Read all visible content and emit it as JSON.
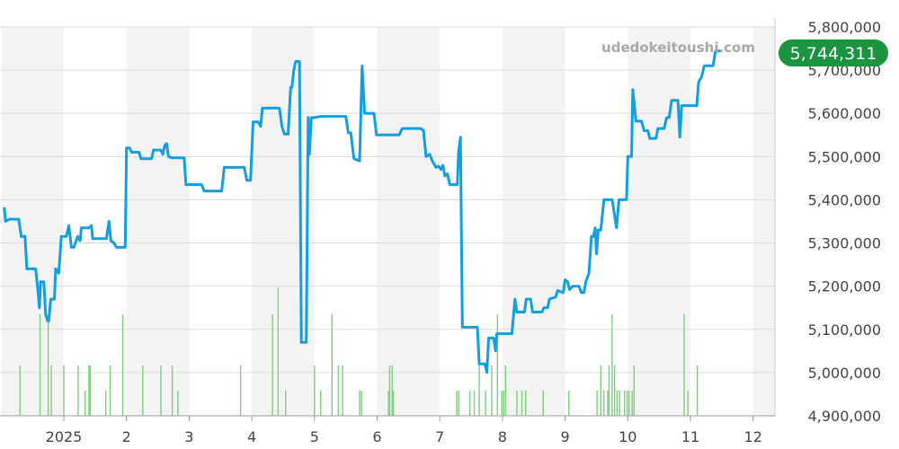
{
  "watermark": "udedokeitoushi.com",
  "current_price_label": "5,744,311",
  "colors": {
    "line": "#129fdf",
    "volume": "#7ccf7c",
    "badge": "#1b9440",
    "band": "#f3f3f3",
    "grid": "#dddddd"
  },
  "chart_data": {
    "type": "line",
    "title": "",
    "xlabel": "",
    "ylabel": "",
    "ylim": [
      4900000,
      5800000
    ],
    "grid": true,
    "y_ticks": [
      {
        "value": 4900000,
        "label": "4,900,000"
      },
      {
        "value": 5000000,
        "label": "5,000,000"
      },
      {
        "value": 5100000,
        "label": "5,100,000"
      },
      {
        "value": 5200000,
        "label": "5,200,000"
      },
      {
        "value": 5300000,
        "label": "5,300,000"
      },
      {
        "value": 5400000,
        "label": "5,400,000"
      },
      {
        "value": 5500000,
        "label": "5,500,000"
      },
      {
        "value": 5600000,
        "label": "5,600,000"
      },
      {
        "value": 5700000,
        "label": "5,700,000"
      },
      {
        "value": 5800000,
        "label": "5,800,000"
      }
    ],
    "x_ticks": [
      {
        "month": 12,
        "label": "2025"
      },
      {
        "month": 13,
        "label": "2"
      },
      {
        "month": 14,
        "label": "3"
      },
      {
        "month": 15,
        "label": "4"
      },
      {
        "month": 16,
        "label": "5"
      },
      {
        "month": 17,
        "label": "6"
      },
      {
        "month": 18,
        "label": "7"
      },
      {
        "month": 19,
        "label": "8"
      },
      {
        "month": 20,
        "label": "9"
      },
      {
        "month": 21,
        "label": "10"
      },
      {
        "month": 22,
        "label": "11"
      },
      {
        "month": 23,
        "label": "12"
      }
    ],
    "series": [
      {
        "values": [
          [
            11.05,
            5380000
          ],
          [
            11.07,
            5350000
          ],
          [
            11.13,
            5355000
          ],
          [
            11.28,
            5355000
          ],
          [
            11.32,
            5315000
          ],
          [
            11.38,
            5315000
          ],
          [
            11.41,
            5240000
          ],
          [
            11.55,
            5240000
          ],
          [
            11.58,
            5200000
          ],
          [
            11.61,
            5150000
          ],
          [
            11.63,
            5210000
          ],
          [
            11.68,
            5210000
          ],
          [
            11.71,
            5135000
          ],
          [
            11.74,
            5120000
          ],
          [
            11.76,
            5120000
          ],
          [
            11.79,
            5170000
          ],
          [
            11.85,
            5170000
          ],
          [
            11.87,
            5240000
          ],
          [
            11.92,
            5230000
          ],
          [
            11.96,
            5315000
          ],
          [
            12.04,
            5315000
          ],
          [
            12.08,
            5340000
          ],
          [
            12.12,
            5290000
          ],
          [
            12.16,
            5290000
          ],
          [
            12.22,
            5315000
          ],
          [
            12.26,
            5305000
          ],
          [
            12.28,
            5335000
          ],
          [
            12.4,
            5335000
          ],
          [
            12.44,
            5340000
          ],
          [
            12.46,
            5310000
          ],
          [
            12.68,
            5310000
          ],
          [
            12.72,
            5350000
          ],
          [
            12.75,
            5305000
          ],
          [
            12.8,
            5300000
          ],
          [
            12.84,
            5290000
          ],
          [
            12.98,
            5290000
          ],
          [
            13.0,
            5520000
          ],
          [
            13.05,
            5520000
          ],
          [
            13.08,
            5510000
          ],
          [
            13.2,
            5510000
          ],
          [
            13.23,
            5495000
          ],
          [
            13.4,
            5495000
          ],
          [
            13.43,
            5515000
          ],
          [
            13.55,
            5515000
          ],
          [
            13.58,
            5505000
          ],
          [
            13.61,
            5525000
          ],
          [
            13.64,
            5530000
          ],
          [
            13.67,
            5500000
          ],
          [
            13.72,
            5497000
          ],
          [
            13.92,
            5497000
          ],
          [
            13.95,
            5435000
          ],
          [
            14.2,
            5435000
          ],
          [
            14.24,
            5420000
          ],
          [
            14.52,
            5420000
          ],
          [
            14.56,
            5475000
          ],
          [
            14.88,
            5475000
          ],
          [
            14.92,
            5445000
          ],
          [
            14.98,
            5445000
          ],
          [
            15.02,
            5580000
          ],
          [
            15.1,
            5580000
          ],
          [
            15.14,
            5570000
          ],
          [
            15.17,
            5612000
          ],
          [
            15.44,
            5612000
          ],
          [
            15.48,
            5570000
          ],
          [
            15.52,
            5552000
          ],
          [
            15.58,
            5552000
          ],
          [
            15.62,
            5660000
          ],
          [
            15.64,
            5660000
          ],
          [
            15.67,
            5700000
          ],
          [
            15.7,
            5720000
          ],
          [
            15.76,
            5720000
          ],
          [
            15.79,
            5070000
          ],
          [
            15.87,
            5070000
          ],
          [
            15.9,
            5590000
          ],
          [
            15.92,
            5505000
          ],
          [
            15.95,
            5590000
          ],
          [
            16.0,
            5590000
          ],
          [
            16.1,
            5593000
          ],
          [
            16.5,
            5593000
          ],
          [
            16.54,
            5555000
          ],
          [
            16.58,
            5555000
          ],
          [
            16.63,
            5495000
          ],
          [
            16.72,
            5490000
          ],
          [
            16.76,
            5710000
          ],
          [
            16.8,
            5600000
          ],
          [
            16.95,
            5600000
          ],
          [
            16.99,
            5550000
          ],
          [
            17.35,
            5550000
          ],
          [
            17.4,
            5565000
          ],
          [
            17.7,
            5565000
          ],
          [
            17.74,
            5560000
          ],
          [
            17.78,
            5500000
          ],
          [
            17.84,
            5505000
          ],
          [
            17.88,
            5490000
          ],
          [
            17.94,
            5475000
          ],
          [
            17.98,
            5478000
          ],
          [
            18.02,
            5470000
          ],
          [
            18.05,
            5480000
          ],
          [
            18.08,
            5455000
          ],
          [
            18.12,
            5460000
          ],
          [
            18.16,
            5435000
          ],
          [
            18.28,
            5435000
          ],
          [
            18.3,
            5510000
          ],
          [
            18.33,
            5545000
          ],
          [
            18.36,
            5105000
          ],
          [
            18.6,
            5105000
          ],
          [
            18.63,
            5020000
          ],
          [
            18.72,
            5020000
          ],
          [
            18.75,
            5000000
          ],
          [
            18.78,
            5080000
          ],
          [
            18.86,
            5080000
          ],
          [
            18.89,
            5050000
          ],
          [
            18.91,
            5090000
          ],
          [
            19.15,
            5090000
          ],
          [
            19.2,
            5170000
          ],
          [
            19.23,
            5140000
          ],
          [
            19.35,
            5140000
          ],
          [
            19.38,
            5170000
          ],
          [
            19.45,
            5170000
          ],
          [
            19.48,
            5140000
          ],
          [
            19.63,
            5140000
          ],
          [
            19.66,
            5150000
          ],
          [
            19.72,
            5150000
          ],
          [
            19.75,
            5170000
          ],
          [
            19.85,
            5175000
          ],
          [
            19.88,
            5190000
          ],
          [
            19.97,
            5185000
          ],
          [
            20.0,
            5215000
          ],
          [
            20.04,
            5210000
          ],
          [
            20.07,
            5192000
          ],
          [
            20.12,
            5200000
          ],
          [
            20.22,
            5200000
          ],
          [
            20.26,
            5185000
          ],
          [
            20.3,
            5185000
          ],
          [
            20.33,
            5210000
          ],
          [
            20.38,
            5230000
          ],
          [
            20.42,
            5315000
          ],
          [
            20.45,
            5315000
          ],
          [
            20.48,
            5335000
          ],
          [
            20.5,
            5275000
          ],
          [
            20.53,
            5330000
          ],
          [
            20.57,
            5330000
          ],
          [
            20.62,
            5400000
          ],
          [
            20.75,
            5400000
          ],
          [
            20.82,
            5335000
          ],
          [
            20.86,
            5400000
          ],
          [
            20.98,
            5400000
          ],
          [
            21.0,
            5500000
          ],
          [
            21.06,
            5500000
          ],
          [
            21.08,
            5655000
          ],
          [
            21.13,
            5582000
          ],
          [
            21.22,
            5582000
          ],
          [
            21.26,
            5560000
          ],
          [
            21.32,
            5560000
          ],
          [
            21.35,
            5542000
          ],
          [
            21.45,
            5542000
          ],
          [
            21.48,
            5565000
          ],
          [
            21.58,
            5565000
          ],
          [
            21.62,
            5590000
          ],
          [
            21.66,
            5590000
          ],
          [
            21.7,
            5630000
          ],
          [
            21.8,
            5630000
          ],
          [
            21.83,
            5545000
          ],
          [
            21.86,
            5618000
          ],
          [
            22.1,
            5618000
          ],
          [
            22.13,
            5672000
          ],
          [
            22.18,
            5685000
          ],
          [
            22.22,
            5710000
          ],
          [
            22.36,
            5710000
          ],
          [
            22.4,
            5744311
          ],
          [
            22.46,
            5744311
          ]
        ]
      },
      {
        "name": "volume",
        "values": [
          [
            11.3,
            2
          ],
          [
            11.62,
            3
          ],
          [
            11.75,
            3
          ],
          [
            11.8,
            2
          ],
          [
            12.0,
            2
          ],
          [
            12.23,
            2
          ],
          [
            12.34,
            1
          ],
          [
            12.4,
            2
          ],
          [
            12.42,
            2
          ],
          [
            12.67,
            1
          ],
          [
            12.74,
            2
          ],
          [
            12.94,
            3
          ],
          [
            13.26,
            2
          ],
          [
            13.55,
            2
          ],
          [
            13.73,
            2
          ],
          [
            13.82,
            1
          ],
          [
            14.82,
            2
          ],
          [
            15.33,
            3
          ],
          [
            15.42,
            4
          ],
          [
            15.54,
            1
          ],
          [
            16.0,
            2
          ],
          [
            16.1,
            1
          ],
          [
            16.28,
            3
          ],
          [
            16.38,
            2
          ],
          [
            16.45,
            2
          ],
          [
            16.72,
            1
          ],
          [
            16.75,
            1
          ],
          [
            17.18,
            1
          ],
          [
            17.2,
            2
          ],
          [
            17.24,
            2
          ],
          [
            17.26,
            1
          ],
          [
            18.27,
            1
          ],
          [
            18.3,
            1
          ],
          [
            18.48,
            1
          ],
          [
            18.55,
            1
          ],
          [
            18.63,
            2
          ],
          [
            18.73,
            1
          ],
          [
            18.83,
            2
          ],
          [
            18.92,
            3
          ],
          [
            18.99,
            1
          ],
          [
            19.02,
            1
          ],
          [
            19.05,
            2
          ],
          [
            19.23,
            1
          ],
          [
            19.31,
            1
          ],
          [
            19.37,
            1
          ],
          [
            19.65,
            1
          ],
          [
            20.06,
            1
          ],
          [
            20.51,
            1
          ],
          [
            20.57,
            2
          ],
          [
            20.62,
            1
          ],
          [
            20.68,
            1
          ],
          [
            20.7,
            2
          ],
          [
            20.75,
            3
          ],
          [
            20.79,
            2
          ],
          [
            20.83,
            1
          ],
          [
            20.87,
            1
          ],
          [
            20.95,
            1
          ],
          [
            20.99,
            1
          ],
          [
            21.02,
            1
          ],
          [
            21.07,
            1
          ],
          [
            21.1,
            2
          ],
          [
            21.9,
            3
          ],
          [
            21.96,
            1
          ],
          [
            22.11,
            2
          ]
        ]
      }
    ]
  }
}
